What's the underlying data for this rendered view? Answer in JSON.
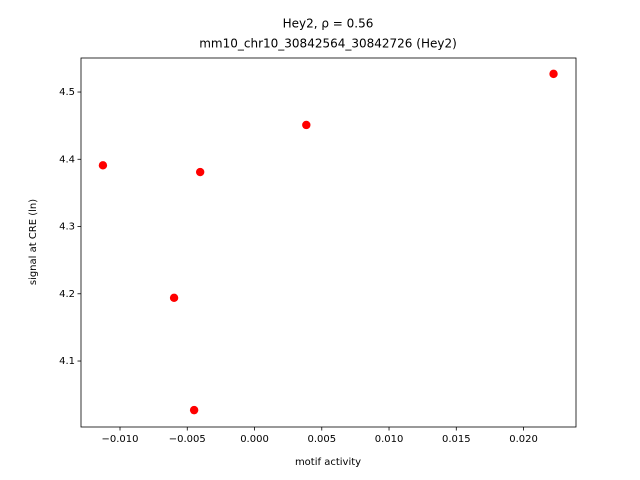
{
  "chart_data": {
    "type": "scatter",
    "title": "Hey2, ρ = 0.56",
    "subtitle": "mm10_chr10_30842564_30842726 (Hey2)",
    "x_label": "motif activity",
    "y_label": "signal at CRE (ln)",
    "color": "#ff0000",
    "x": [
      -0.01127,
      -0.00404,
      -0.00598,
      -0.00449,
      0.00385,
      0.02223
    ],
    "values": [
      4.391,
      4.381,
      4.194,
      4.027,
      4.451,
      4.527
    ],
    "xlim": [
      -0.0129,
      0.0239
    ],
    "ylim": [
      4.0019,
      4.5506
    ],
    "xticks": [
      {
        "value": -0.01,
        "label": "−0.010"
      },
      {
        "value": -0.005,
        "label": "−0.005"
      },
      {
        "value": 0,
        "label": "0.000"
      },
      {
        "value": 0.005,
        "label": "0.005"
      },
      {
        "value": 0.01,
        "label": "0.010"
      },
      {
        "value": 0.015,
        "label": "0.015"
      },
      {
        "value": 0.02,
        "label": "0.020"
      }
    ],
    "yticks": [
      4.1,
      4.2,
      4.3,
      4.4,
      4.5
    ]
  }
}
